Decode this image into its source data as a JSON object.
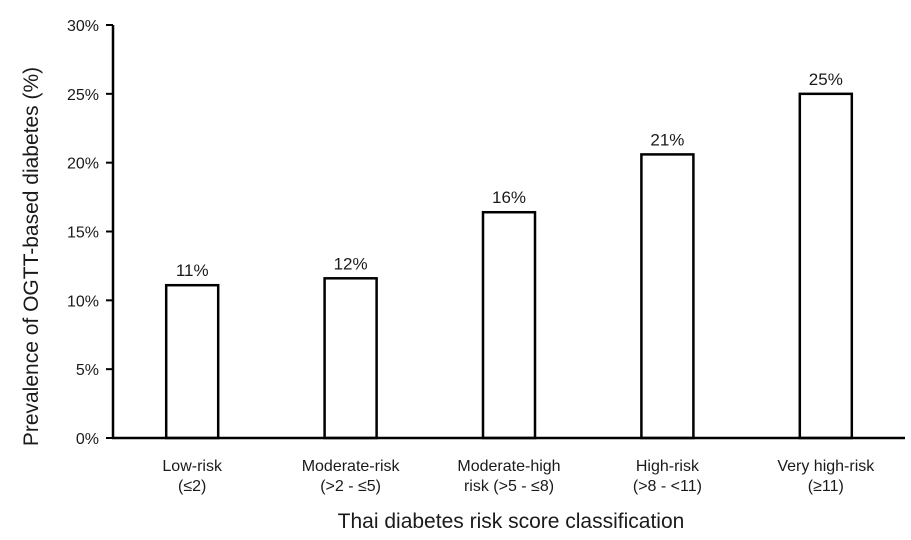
{
  "chart_data": {
    "type": "bar",
    "categories": [
      [
        "Low-risk",
        "(≤2)"
      ],
      [
        "Moderate-risk",
        "(>2 - ≤5)"
      ],
      [
        "Moderate-high",
        "risk (>5 - ≤8)"
      ],
      [
        "High-risk",
        "(>8 - <11)"
      ],
      [
        "Very high-risk",
        "(≥11)"
      ]
    ],
    "values": [
      11.1,
      11.6,
      16.4,
      20.6,
      25.0
    ],
    "data_labels": [
      "11%",
      "12%",
      "16%",
      "21%",
      "25%"
    ],
    "xlabel": "Thai diabetes risk score classification",
    "ylabel": "Prevalence of OGTT-based diabetes (%)",
    "ylim": [
      0,
      30
    ],
    "yticks": [
      0,
      5,
      10,
      15,
      20,
      25,
      30
    ],
    "ytick_labels": [
      "0%",
      "5%",
      "10%",
      "15%",
      "20%",
      "25%",
      "30%"
    ],
    "grid": false,
    "bar_fill": "#ffffff",
    "bar_edge": "#000000"
  }
}
